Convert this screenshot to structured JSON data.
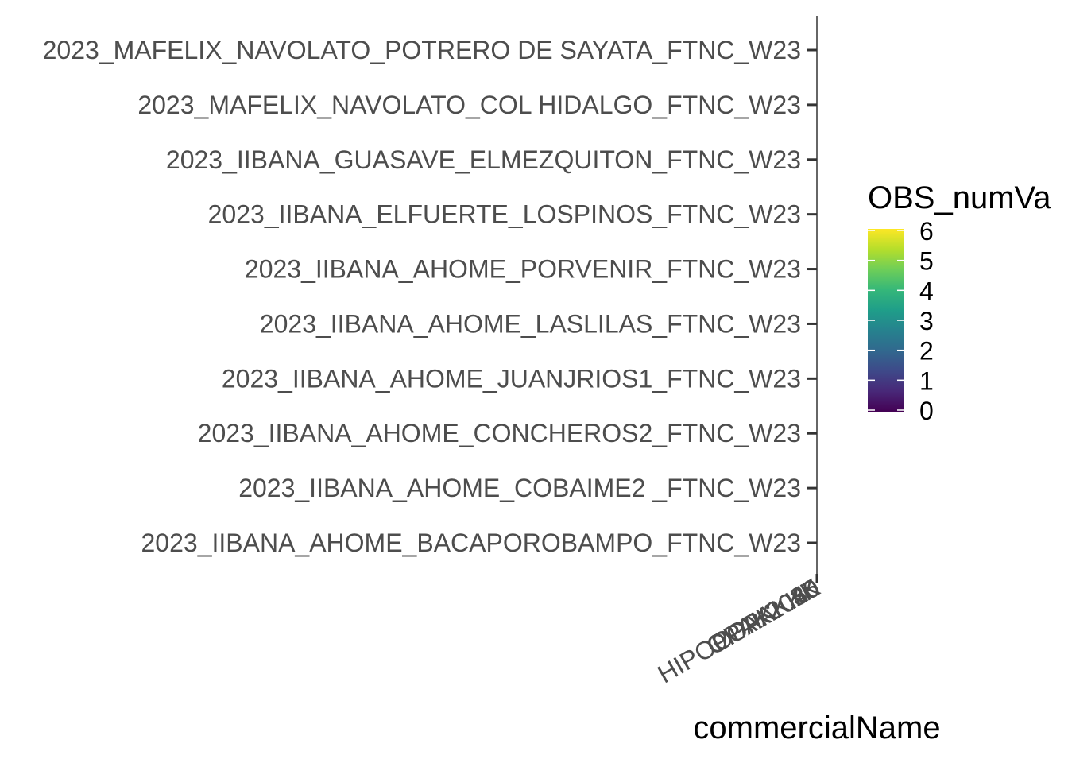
{
  "chart_data": {
    "type": "heatmap",
    "title": "",
    "xlabel": "commercialName",
    "ylabel": "",
    "y_categories": [
      "2023_IIBANA_AHOME_BACAPOROBAMPO_FTNC_W23",
      "2023_IIBANA_AHOME_COBAIME2 _FTNC_W23",
      "2023_IIBANA_AHOME_CONCHEROS2_FTNC_W23",
      "2023_IIBANA_AHOME_JUANJRIOS1_FTNC_W23",
      "2023_IIBANA_AHOME_LASLILAS_FTNC_W23",
      "2023_IIBANA_AHOME_PORVENIR_FTNC_W23",
      "2023_IIBANA_ELFUERTE_LOSPINOS_FTNC_W23",
      "2023_IIBANA_GUASAVE_ELMEZQUITON_FTNC_W23",
      "2023_MAFELIX_NAVOLATO_COL HIDALGO_FTNC_W23",
      "2023_MAFELIX_NAVOLATO_POTRERO DE SAYATA_FTNC_W23"
    ],
    "x_tick_labels": [
      "HIPOPOPAKKK",
      "OPAKKKK",
      "OPAK2025",
      "OPAK2030",
      "OPAK2040",
      "OPAK2050"
    ],
    "legend": {
      "title": "OBS_numVa",
      "position": "right",
      "colorscale": "viridis",
      "range": [
        0,
        6
      ],
      "ticks": [
        0,
        1,
        2,
        3,
        4,
        5,
        6
      ]
    },
    "grid": false
  },
  "colors": {
    "axis_line": "#333333",
    "tick_text": "#4d4d4d",
    "title_text": "#000000",
    "viridis_stops": [
      "#440154",
      "#482878",
      "#3e4989",
      "#31688e",
      "#26828e",
      "#1f9e89",
      "#35b779",
      "#6ece58",
      "#b5de2b",
      "#fde725"
    ]
  }
}
